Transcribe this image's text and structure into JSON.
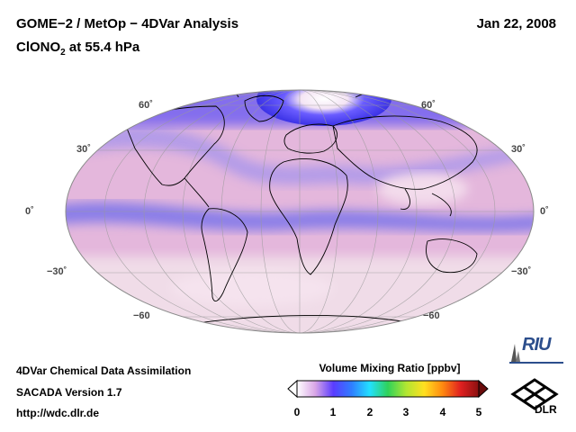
{
  "header": {
    "title_line1": "GOME−2 / MetOp − 4DVar Analysis",
    "title_line2_prefix": "ClONO",
    "title_line2_sub": "2",
    "title_line2_suffix": " at 55.4 hPa",
    "date": "Jan 22, 2008"
  },
  "map": {
    "projection": "Mollweide",
    "lat_labels_left": [
      "60˚",
      "30˚",
      "0˚",
      "−30˚",
      "−60"
    ],
    "lat_labels_right": [
      "60˚",
      "30˚",
      "0˚",
      "−30˚",
      "−60"
    ],
    "colors": {
      "ocean_base": "#e4b7dc",
      "high_band": "#8a7ee8",
      "low_band": "#f0dce8",
      "polar_high": "#3b32e6",
      "coastline": "#000000",
      "grid": "#9a9a9a"
    }
  },
  "footer": {
    "line1": "4DVar Chemical Data Assimilation",
    "line2": "SACADA Version 1.7",
    "line3": "http://wdc.dlr.de"
  },
  "colorbar": {
    "title": "Volume Mixing Ratio [ppbv]",
    "ticks": [
      "0",
      "1",
      "2",
      "3",
      "4",
      "5"
    ],
    "stops": [
      "#ffffff",
      "#d9a6e6",
      "#5a3cff",
      "#2f7dff",
      "#22e0ff",
      "#2fd25a",
      "#b0e632",
      "#ffe020",
      "#ff8a10",
      "#e02020",
      "#8a1010"
    ]
  },
  "logos": {
    "riu": "RIU",
    "dlr": "DLR"
  }
}
